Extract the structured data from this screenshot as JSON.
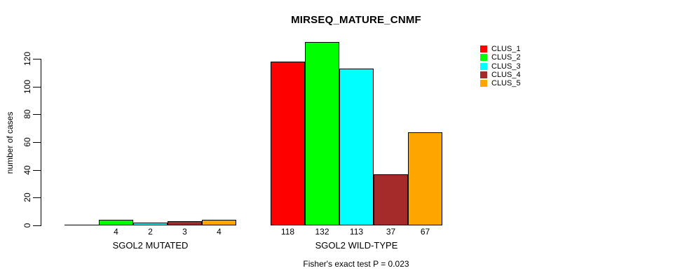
{
  "title": "MIRSEQ_MATURE_CNMF",
  "chart_data": {
    "type": "bar",
    "title": "MIRSEQ_MATURE_CNMF",
    "ylabel": "number of cases",
    "xlabel": "",
    "categories": [
      "SGOL2 MUTATED",
      "SGOL2 WILD-TYPE"
    ],
    "series": [
      {
        "name": "CLUS_1",
        "color": "#ff0000",
        "values": [
          0,
          118
        ]
      },
      {
        "name": "CLUS_2",
        "color": "#00ff00",
        "values": [
          4,
          132
        ]
      },
      {
        "name": "CLUS_3",
        "color": "#00ffff",
        "values": [
          2,
          113
        ]
      },
      {
        "name": "CLUS_4",
        "color": "#a52a2a",
        "values": [
          3,
          37
        ]
      },
      {
        "name": "CLUS_5",
        "color": "#ffa500",
        "values": [
          4,
          67
        ]
      }
    ],
    "bar_value_labels": [
      [
        "",
        "4",
        "2",
        "3",
        "4"
      ],
      [
        "118",
        "132",
        "113",
        "37",
        "67"
      ]
    ],
    "yticks": [
      0,
      20,
      40,
      60,
      80,
      100,
      120
    ],
    "ylim": [
      0,
      120
    ],
    "grid": false,
    "legend_position": "right",
    "legend_entries": [
      "CLUS_1",
      "CLUS_2",
      "CLUS_3",
      "CLUS_4",
      "CLUS_5"
    ],
    "annotation": "Fisher's exact test P = 0.023"
  }
}
